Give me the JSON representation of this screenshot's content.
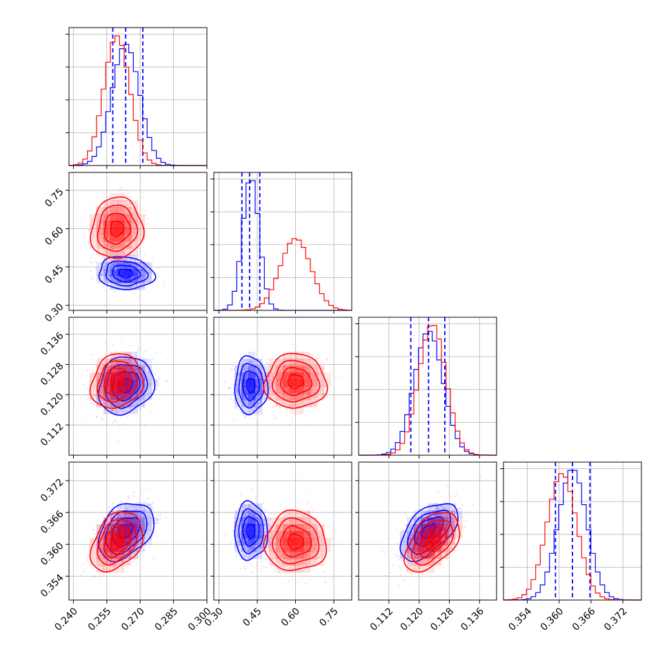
{
  "chart_data": {
    "type": "corner",
    "params": [
      {
        "range": [
          0.238,
          0.3
        ],
        "ticks": [
          "0.240",
          "0.255",
          "0.270",
          "0.285",
          "0.300"
        ]
      },
      {
        "range": [
          0.28,
          0.82
        ],
        "ticks": [
          "0.30",
          "0.45",
          "0.60",
          "0.75"
        ]
      },
      {
        "range": [
          0.104,
          0.1405
        ],
        "ticks": [
          "0.112",
          "0.120",
          "0.128",
          "0.136"
        ]
      },
      {
        "range": [
          0.3495,
          0.3755
        ],
        "ticks": [
          "0.354",
          "0.360",
          "0.366",
          "0.372"
        ]
      }
    ],
    "series": [
      {
        "color": "#0000ff",
        "quantile_color": "#0000ff",
        "mean": [
          0.2635,
          0.425,
          0.1225,
          0.3625
        ],
        "sd": [
          0.0062,
          0.032,
          0.0038,
          0.0027
        ],
        "quantiles": [
          [
            0.2577,
            0.2635,
            0.2712
          ],
          [
            0.39,
            0.42,
            0.46
          ],
          [
            0.1178,
            0.1225,
            0.1268
          ],
          [
            0.3593,
            0.3625,
            0.3658
          ]
        ],
        "corr": {
          "1-0": -0.1,
          "2-0": 0.15,
          "2-1": 0.0,
          "3-0": 0.35,
          "3-1": 0.0,
          "3-2": 0.55
        }
      },
      {
        "color": "#ff0000",
        "quantile_color": null,
        "mean": [
          0.2595,
          0.6,
          0.1235,
          0.3605
        ],
        "sd": [
          0.0058,
          0.06,
          0.0036,
          0.0028
        ],
        "quantiles": null,
        "corr": {
          "1-0": 0.05,
          "2-0": 0.15,
          "2-1": 0.0,
          "3-0": 0.35,
          "3-1": 0.0,
          "3-2": 0.5
        }
      }
    ]
  }
}
